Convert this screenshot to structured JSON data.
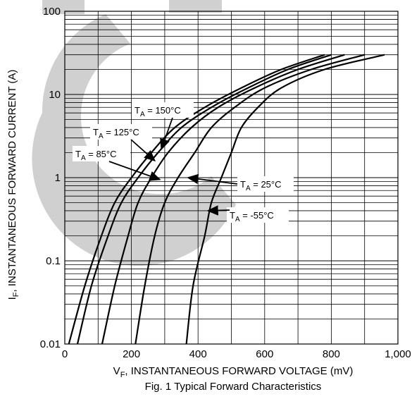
{
  "chart_data": {
    "type": "line",
    "title": "Fig. 1 Typical Forward Characteristics",
    "xlabel": {
      "main": "V",
      "sub": "F",
      "rest": ", INSTANTANEOUS FORWARD VOLTAGE (mV)"
    },
    "ylabel": {
      "main": "I",
      "sub": "F",
      "rest": ", INSTANTANEOUS FORWARD CURRENT (A)"
    },
    "xlim": [
      0,
      1000
    ],
    "ylim": [
      0.01,
      100
    ],
    "yscale": "log",
    "grid": true,
    "xticks": [
      {
        "value": 0,
        "label": "0"
      },
      {
        "value": 200,
        "label": "200"
      },
      {
        "value": 400,
        "label": "400"
      },
      {
        "value": 600,
        "label": "600"
      },
      {
        "value": 800,
        "label": "800"
      },
      {
        "value": 1000,
        "label": "1,000"
      }
    ],
    "yticks": [
      {
        "value": 0.01,
        "label": "0.01"
      },
      {
        "value": 0.1,
        "label": "0.1"
      },
      {
        "value": 1,
        "label": "1"
      },
      {
        "value": 10,
        "label": "10"
      },
      {
        "value": 100,
        "label": "100"
      }
    ],
    "series": [
      {
        "name": "T_A = 150°C",
        "x": [
          12,
          60,
          110,
          150,
          200,
          260,
          330,
          420,
          530,
          650,
          780
        ],
        "y": [
          0.01,
          0.05,
          0.2,
          0.5,
          1.0,
          2.0,
          4.0,
          7.0,
          12.0,
          20.0,
          30.0
        ]
      },
      {
        "name": "T_A = 125°C",
        "x": [
          38,
          80,
          130,
          170,
          220,
          280,
          350,
          440,
          550,
          670,
          800
        ],
        "y": [
          0.01,
          0.05,
          0.2,
          0.5,
          1.0,
          2.0,
          4.0,
          7.0,
          12.0,
          20.0,
          30.0
        ]
      },
      {
        "name": "T_A = 85°C",
        "x": [
          112,
          150,
          190,
          220,
          260,
          310,
          380,
          460,
          570,
          700,
          840
        ],
        "y": [
          0.01,
          0.05,
          0.2,
          0.5,
          1.0,
          2.0,
          4.0,
          7.0,
          12.0,
          20.0,
          30.0
        ]
      },
      {
        "name": "T_A = 25°C",
        "x": [
          212,
          240,
          270,
          300,
          340,
          390,
          440,
          510,
          600,
          740,
          900
        ],
        "y": [
          0.01,
          0.05,
          0.2,
          0.5,
          1.0,
          2.0,
          4.0,
          7.0,
          12.0,
          20.0,
          30.0
        ]
      },
      {
        "name": "T_A = -55°C",
        "x": [
          365,
          385,
          420,
          440,
          470,
          500,
          530,
          580,
          650,
          780,
          960
        ],
        "y": [
          0.01,
          0.05,
          0.2,
          0.5,
          1.0,
          2.0,
          4.0,
          7.0,
          12.0,
          20.0,
          30.0
        ]
      }
    ],
    "annotations": [
      {
        "main": "T",
        "sub": "A",
        "rest": " = 150°C",
        "target": [
          290,
          2.2
        ]
      },
      {
        "main": "T",
        "sub": "A",
        "rest": " = 125°C",
        "target": [
          270,
          1.6
        ]
      },
      {
        "main": "T",
        "sub": "A",
        "rest": " = 85°C",
        "target": [
          285,
          0.95
        ]
      },
      {
        "main": "T",
        "sub": "A",
        "rest": " = 25°C",
        "target": [
          370,
          1.0
        ]
      },
      {
        "main": "T",
        "sub": "A",
        "rest": " = -55°C",
        "target": [
          430,
          0.4
        ]
      }
    ]
  }
}
